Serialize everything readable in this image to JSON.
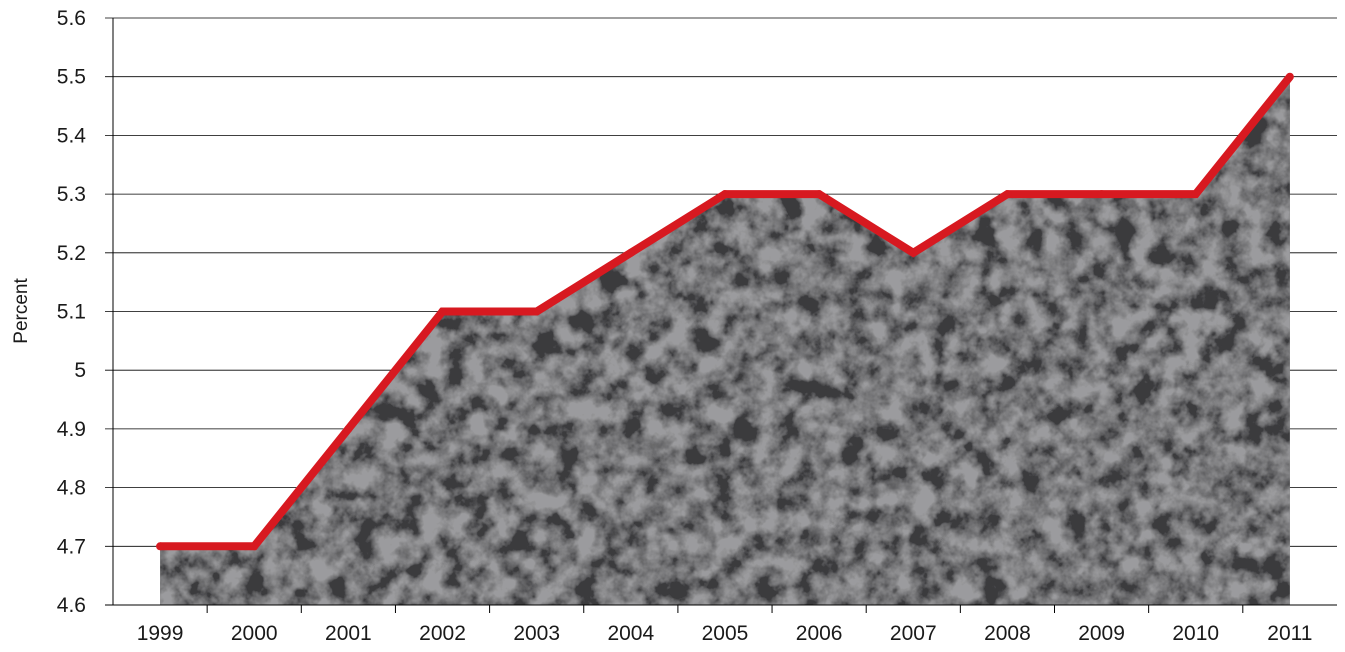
{
  "chart_data": {
    "type": "area",
    "title": "",
    "xlabel": "",
    "ylabel": "Percent",
    "categories": [
      "1999",
      "2000",
      "2001",
      "2002",
      "2003",
      "2004",
      "2005",
      "2006",
      "2007",
      "2008",
      "2009",
      "2010",
      "2011"
    ],
    "series": [
      {
        "values": [
          4.7,
          4.7,
          4.9,
          5.1,
          5.1,
          5.2,
          5.3,
          5.3,
          5.2,
          5.3,
          5.3,
          5.3,
          5.5
        ]
      }
    ],
    "ylim": [
      4.6,
      5.6
    ],
    "yticks": [
      "4.6",
      "4.7",
      "4.8",
      "4.9",
      "5",
      "5.1",
      "5.2",
      "5.3",
      "5.4",
      "5.5",
      "5.6"
    ],
    "grid": true,
    "legend": "none",
    "colors": {
      "line": "#d71920",
      "fill": "#3b3b3d",
      "grid": "#000000"
    }
  }
}
